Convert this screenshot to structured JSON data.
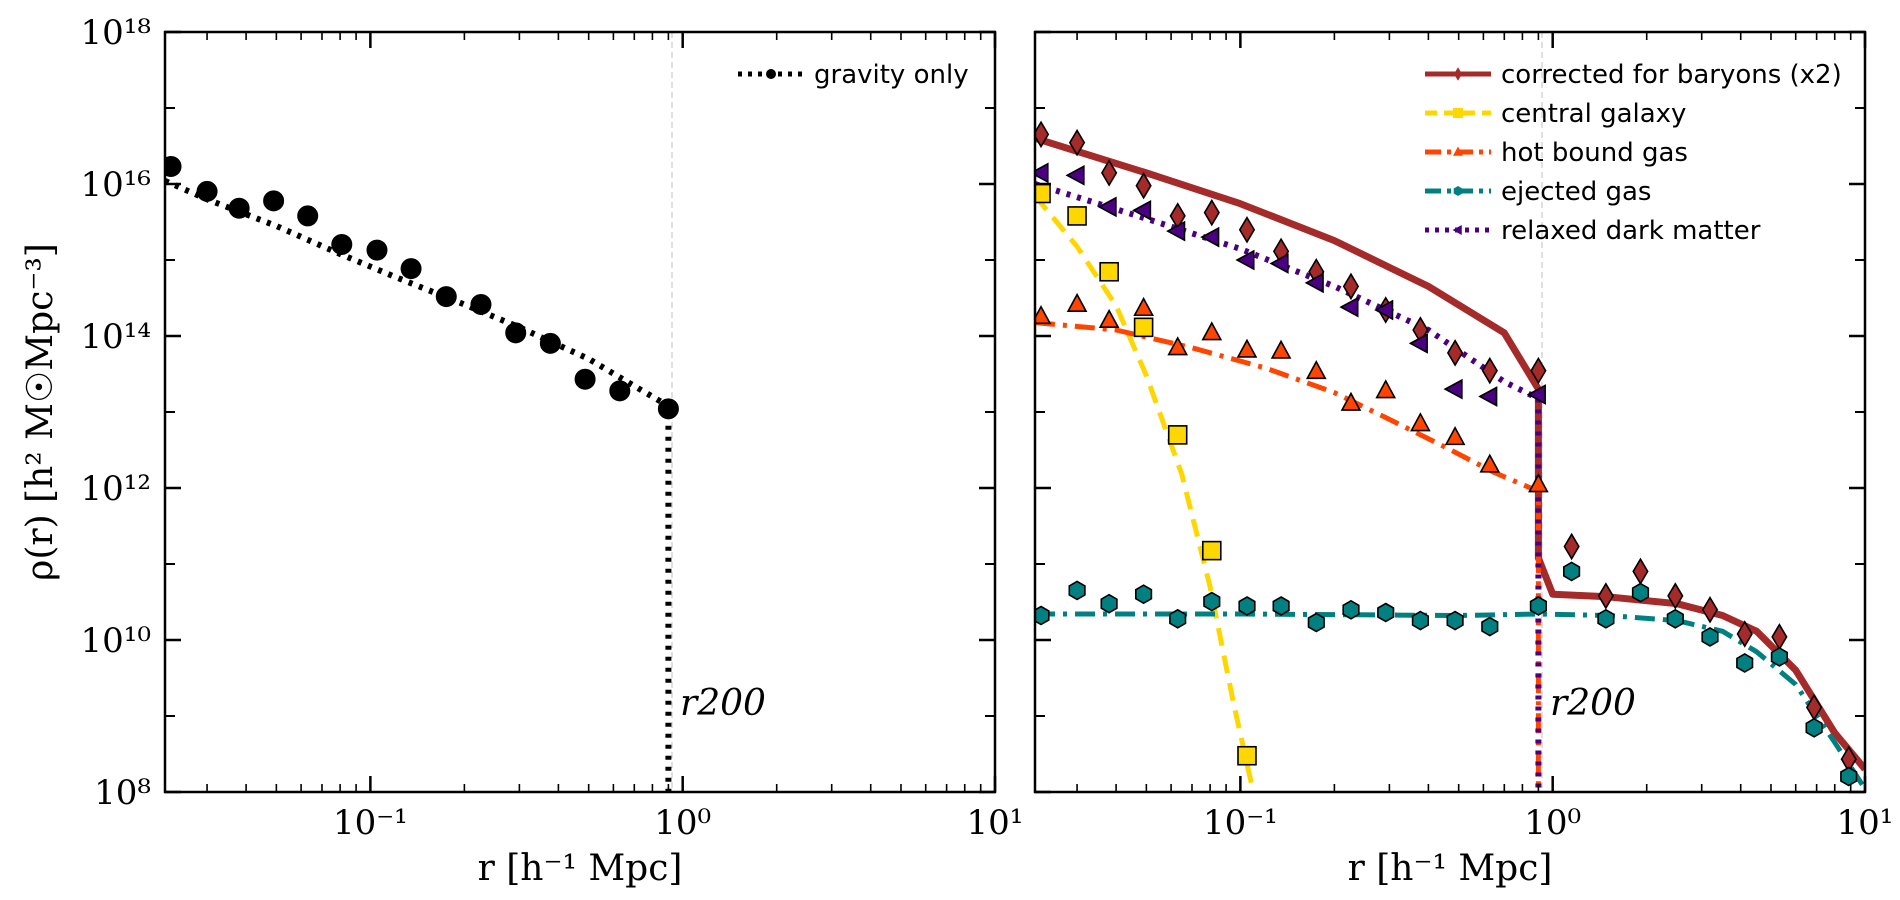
{
  "figure": {
    "ylabel": "ρ(r) [h² M☉Mpc⁻³]",
    "r200_label": "r200"
  },
  "chart_data": [
    {
      "type": "line",
      "panel": "left",
      "xscale": "log",
      "yscale": "log",
      "xlim": [
        0.022,
        10
      ],
      "ylim": [
        100000000.0,
        1e+18
      ],
      "xlabel": "r [h⁻¹ Mpc]",
      "x_ticks": [
        {
          "value": 0.1,
          "label": "10⁻¹"
        },
        {
          "value": 1,
          "label": "10⁰"
        },
        {
          "value": 10,
          "label": "10¹"
        }
      ],
      "y_ticks": [
        {
          "value": 100000000.0,
          "label": "10⁸"
        },
        {
          "value": 10000000000.0,
          "label": "10¹⁰"
        },
        {
          "value": 1000000000000.0,
          "label": "10¹²"
        },
        {
          "value": 100000000000000.0,
          "label": "10¹⁴"
        },
        {
          "value": 1e+16,
          "label": "10¹⁶"
        },
        {
          "value": 1e+18,
          "label": "10¹⁸"
        }
      ],
      "r200": 0.9,
      "r200_label": "r200",
      "legend_position": "top-right",
      "series": [
        {
          "name": "gravity only",
          "color": "#000000",
          "style": "dotted",
          "marker": "circle",
          "line_x": [
            0.022,
            0.03,
            0.05,
            0.08,
            0.12,
            0.2,
            0.3,
            0.5,
            0.7,
            0.9
          ],
          "line_y": [
            1.1e+16,
            6300000000000000.0,
            2800000000000000.0,
            1200000000000000.0,
            600000000000000.0,
            260000000000000.0,
            130000000000000.0,
            50000000000000.0,
            22000000000000.0,
            12000000000000.0
          ],
          "drop_to": 100000000.0,
          "points_x": [
            0.023,
            0.03,
            0.038,
            0.049,
            0.063,
            0.081,
            0.105,
            0.135,
            0.175,
            0.226,
            0.292,
            0.377,
            0.487,
            0.629,
            0.9
          ],
          "points_y": [
            1.7e+16,
            8000000000000000.0,
            4800000000000000.0,
            6000000000000000.0,
            3800000000000000.0,
            1600000000000000.0,
            1350000000000000.0,
            770000000000000.0,
            330000000000000.0,
            260000000000000.0,
            110000000000000.0,
            80000000000000.0,
            27000000000000.0,
            19000000000000.0,
            11000000000000.0
          ]
        }
      ]
    },
    {
      "type": "line",
      "panel": "right",
      "xscale": "log",
      "yscale": "log",
      "xlim": [
        0.022,
        10
      ],
      "ylim": [
        100000000.0,
        1e+18
      ],
      "xlabel": "r [h⁻¹ Mpc]",
      "x_ticks": [
        {
          "value": 0.1,
          "label": "10⁻¹"
        },
        {
          "value": 1,
          "label": "10⁰"
        },
        {
          "value": 10,
          "label": "10¹"
        }
      ],
      "r200": 0.9,
      "r200_label": "r200",
      "legend_position": "top-right",
      "series": [
        {
          "name": "corrected for baryons (x2)",
          "color": "#a52a2a",
          "style": "solid",
          "marker": "diamond",
          "line_x": [
            0.022,
            0.05,
            0.1,
            0.2,
            0.4,
            0.7,
            0.9,
            0.9,
            1.0,
            1.5,
            2.5,
            3.5,
            4.5,
            6.0,
            8.0,
            10.0
          ],
          "line_y": [
            4e+16,
            1.4e+16,
            5500000000000000.0,
            1800000000000000.0,
            450000000000000.0,
            110000000000000.0,
            20000000000000.0,
            120000000000.0,
            40000000000.0,
            37000000000.0,
            30000000000.0,
            21000000000.0,
            13000000000.0,
            4000000000.0,
            600000000.0,
            200000000.0
          ],
          "points_x": [
            0.023,
            0.03,
            0.038,
            0.049,
            0.063,
            0.081,
            0.105,
            0.135,
            0.175,
            0.226,
            0.292,
            0.377,
            0.487,
            0.629,
            0.9,
            1.15,
            1.48,
            1.91,
            2.47,
            3.19,
            4.12,
            5.32,
            6.87,
            8.87
          ],
          "points_y": [
            4.5e+16,
            3.5e+16,
            1.4e+16,
            9500000000000000.0,
            3800000000000000.0,
            4200000000000000.0,
            2500000000000000.0,
            1300000000000000.0,
            700000000000000.0,
            450000000000000.0,
            220000000000000.0,
            120000000000000.0,
            60000000000000.0,
            35000000000000.0,
            35000000000000.0,
            170000000000.0,
            38000000000.0,
            80000000000.0,
            38000000000.0,
            25000000000.0,
            12000000000.0,
            11000000000.0,
            1300000000.0,
            270000000.0
          ]
        },
        {
          "name": "central galaxy",
          "color": "#ffd700",
          "style": "dashed",
          "marker": "square",
          "line_x": [
            0.022,
            0.03,
            0.04,
            0.05,
            0.065,
            0.08,
            0.095,
            0.11
          ],
          "line_y": [
            7000000000000000.0,
            1500000000000000.0,
            250000000000000.0,
            30000000000000.0,
            1500000000000.0,
            50000000000.0,
            1500000000.0,
            100000000.0
          ],
          "points_x": [
            0.023,
            0.03,
            0.038,
            0.049,
            0.063,
            0.081,
            0.105
          ],
          "points_y": [
            7500000000000000.0,
            3800000000000000.0,
            700000000000000.0,
            130000000000000.0,
            5000000000000.0,
            150000000000.0,
            300000000.0
          ]
        },
        {
          "name": "hot bound gas",
          "color": "#ff4500",
          "style": "dashdot",
          "marker": "triangle",
          "line_x": [
            0.022,
            0.04,
            0.07,
            0.12,
            0.2,
            0.3,
            0.45,
            0.65,
            0.85,
            0.9,
            0.9
          ],
          "line_y": [
            150000000000000.0,
            120000000000000.0,
            70000000000000.0,
            38000000000000.0,
            18000000000000.0,
            8000000000000.0,
            3500000000000.0,
            1600000000000.0,
            1000000000000.0,
            1000000000000.0,
            100000000.0
          ],
          "points_x": [
            0.023,
            0.03,
            0.038,
            0.049,
            0.063,
            0.081,
            0.105,
            0.135,
            0.175,
            0.226,
            0.292,
            0.377,
            0.487,
            0.629,
            0.9
          ],
          "points_y": [
            180000000000000.0,
            260000000000000.0,
            160000000000000.0,
            230000000000000.0,
            70000000000000.0,
            110000000000000.0,
            65000000000000.0,
            63000000000000.0,
            34000000000000.0,
            13000000000000.0,
            19000000000000.0,
            7000000000000.0,
            4600000000000.0,
            2000000000000.0,
            1100000000000.0
          ]
        },
        {
          "name": "ejected gas",
          "color": "#008080",
          "style": "dashdot",
          "marker": "hexagon",
          "line_x": [
            0.022,
            0.1,
            0.5,
            0.9,
            1.5,
            2.5,
            3.5,
            4.5,
            6.0,
            8.0,
            10.0
          ],
          "line_y": [
            22000000000.0,
            22000000000.0,
            21000000000.0,
            22000000000.0,
            21000000000.0,
            18000000000.0,
            13000000000.0,
            7000000000.0,
            2600000000.0,
            450000000.0,
            110000000.0
          ],
          "points_x": [
            0.023,
            0.03,
            0.038,
            0.049,
            0.063,
            0.081,
            0.105,
            0.135,
            0.175,
            0.226,
            0.292,
            0.377,
            0.487,
            0.629,
            0.9,
            1.15,
            1.48,
            1.91,
            2.47,
            3.19,
            4.12,
            5.32,
            6.87,
            8.87
          ],
          "points_y": [
            21000000000.0,
            45000000000.0,
            30000000000.0,
            40000000000.0,
            19000000000.0,
            32000000000.0,
            28000000000.0,
            28000000000.0,
            17000000000.0,
            25000000000.0,
            23000000000.0,
            18000000000.0,
            18000000000.0,
            15000000000.0,
            28000000000.0,
            80000000000.0,
            19000000000.0,
            42000000000.0,
            19000000000.0,
            11000000000.0,
            5000000000.0,
            6000000000.0,
            700000000.0,
            160000000.0
          ]
        },
        {
          "name": "relaxed dark matter",
          "color": "#4b0082",
          "style": "dotted",
          "marker": "triangle-left",
          "line_x": [
            0.022,
            0.05,
            0.1,
            0.2,
            0.4,
            0.7,
            0.9,
            0.9
          ],
          "line_y": [
            1e+16,
            3500000000000000.0,
            1400000000000000.0,
            450000000000000.0,
            120000000000000.0,
            25000000000000.0,
            15000000000000.0,
            100000000.0
          ],
          "points_x": [
            0.023,
            0.03,
            0.038,
            0.049,
            0.063,
            0.081,
            0.105,
            0.135,
            0.175,
            0.226,
            0.292,
            0.377,
            0.487,
            0.629,
            0.9
          ],
          "points_y": [
            1.4e+16,
            1.3e+16,
            5000000000000000.0,
            4500000000000000.0,
            2400000000000000.0,
            2000000000000000.0,
            1000000000000000.0,
            900000000000000.0,
            500000000000000.0,
            240000000000000.0,
            220000000000000.0,
            80000000000000.0,
            20000000000000.0,
            16000000000000.0,
            17000000000000.0
          ]
        }
      ]
    }
  ]
}
